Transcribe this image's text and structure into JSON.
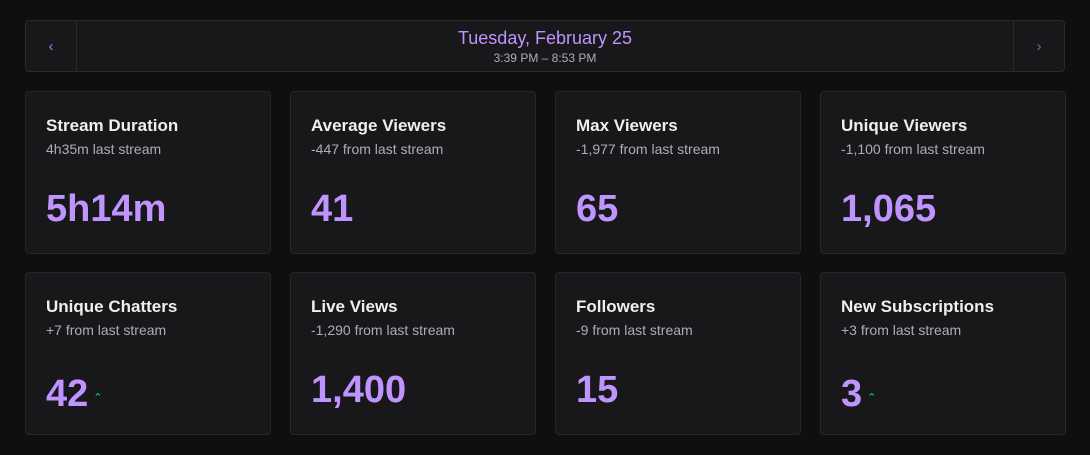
{
  "header": {
    "date": "Tuesday, February 25",
    "time_range": "3:39 PM – 8:53 PM",
    "prev_icon": "‹",
    "next_icon": "›"
  },
  "cards": [
    {
      "title": "Stream Duration",
      "subtitle": "4h35m last stream",
      "value": "5h14m",
      "trend": ""
    },
    {
      "title": "Average Viewers",
      "subtitle": "-447 from last stream",
      "value": "41",
      "trend": ""
    },
    {
      "title": "Max Viewers",
      "subtitle": "-1,977 from last stream",
      "value": "65",
      "trend": ""
    },
    {
      "title": "Unique Viewers",
      "subtitle": "-1,100 from last stream",
      "value": "1,065",
      "trend": ""
    },
    {
      "title": "Unique Chatters",
      "subtitle": "+7 from last stream",
      "value": "42",
      "trend": "up"
    },
    {
      "title": "Live Views",
      "subtitle": "-1,290 from last stream",
      "value": "1,400",
      "trend": ""
    },
    {
      "title": "Followers",
      "subtitle": "-9 from last stream",
      "value": "15",
      "trend": ""
    },
    {
      "title": "New Subscriptions",
      "subtitle": "+3 from last stream",
      "value": "3",
      "trend": "up"
    }
  ],
  "colors": {
    "accent": "#bf94ff",
    "trend_up": "#00c264",
    "card_bg": "#18181b",
    "page_bg": "#0f0f10"
  }
}
